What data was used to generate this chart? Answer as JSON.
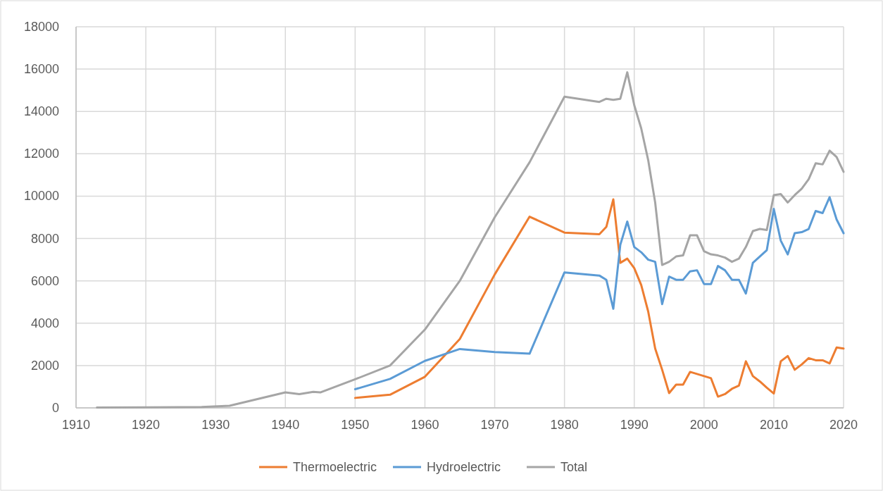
{
  "chart_data": {
    "type": "line",
    "xlim": [
      1910,
      2020
    ],
    "xticks": [
      1910,
      1920,
      1930,
      1940,
      1950,
      1960,
      1970,
      1980,
      1990,
      2000,
      2010,
      2020
    ],
    "ylim": [
      0,
      18000
    ],
    "yticks": [
      0,
      2000,
      4000,
      6000,
      8000,
      10000,
      12000,
      14000,
      16000,
      18000
    ],
    "grid": true,
    "legend": "bottom",
    "marker": "none",
    "line_style": "solid",
    "series": [
      {
        "name": "Thermoelectric",
        "color": "#ed7d31",
        "x": [
          1950,
          1955,
          1960,
          1965,
          1970,
          1975,
          1980,
          1985,
          1986,
          1987,
          1988,
          1989,
          1990,
          1991,
          1992,
          1993,
          1994,
          1995,
          1996,
          1997,
          1998,
          1999,
          2000,
          2001,
          2002,
          2003,
          2004,
          2005,
          2006,
          2007,
          2008,
          2009,
          2010,
          2011,
          2012,
          2013,
          2014,
          2015,
          2016,
          2017,
          2018,
          2019,
          2020
        ],
        "values": [
          470,
          620,
          1470,
          3250,
          6300,
          9030,
          8280,
          8200,
          8550,
          9850,
          6850,
          7050,
          6600,
          5800,
          4550,
          2800,
          1800,
          700,
          1100,
          1100,
          1700,
          1600,
          1500,
          1400,
          530,
          650,
          900,
          1050,
          2200,
          1500,
          1250,
          950,
          680,
          2200,
          2450,
          1800,
          2050,
          2350,
          2250,
          2250,
          2100,
          2850,
          2800
        ]
      },
      {
        "name": "Hydroelectric",
        "color": "#5b9bd5",
        "x": [
          1950,
          1955,
          1960,
          1965,
          1970,
          1975,
          1980,
          1985,
          1986,
          1987,
          1988,
          1989,
          1990,
          1991,
          1992,
          1993,
          1994,
          1995,
          1996,
          1997,
          1998,
          1999,
          2000,
          2001,
          2002,
          2003,
          2004,
          2005,
          2006,
          2007,
          2008,
          2009,
          2010,
          2011,
          2012,
          2013,
          2014,
          2015,
          2016,
          2017,
          2018,
          2019,
          2020
        ],
        "values": [
          880,
          1370,
          2220,
          2780,
          2640,
          2560,
          6400,
          6250,
          6050,
          4680,
          7700,
          8800,
          7600,
          7350,
          7000,
          6900,
          4900,
          6200,
          6050,
          6050,
          6450,
          6500,
          5850,
          5850,
          6700,
          6500,
          6050,
          6050,
          5400,
          6850,
          7150,
          7450,
          9400,
          7900,
          7250,
          8250,
          8300,
          8450,
          9300,
          9200,
          9950,
          8900,
          8250
        ]
      },
      {
        "name": "Total",
        "color": "#a5a5a5",
        "x": [
          1913,
          1920,
          1928,
          1932,
          1940,
          1942,
          1944,
          1945,
          1950,
          1955,
          1960,
          1965,
          1970,
          1975,
          1980,
          1985,
          1986,
          1987,
          1988,
          1989,
          1990,
          1991,
          1992,
          1993,
          1994,
          1995,
          1996,
          1997,
          1998,
          1999,
          2000,
          2001,
          2002,
          2003,
          2004,
          2005,
          2006,
          2007,
          2008,
          2009,
          2010,
          2011,
          2012,
          2013,
          2014,
          2015,
          2016,
          2017,
          2018,
          2019,
          2020
        ],
        "values": [
          20,
          25,
          40,
          100,
          730,
          650,
          760,
          730,
          1350,
          2000,
          3700,
          6000,
          9000,
          11600,
          14700,
          14450,
          14600,
          14550,
          14600,
          15850,
          14300,
          13200,
          11700,
          9700,
          6750,
          6900,
          7150,
          7200,
          8150,
          8150,
          7400,
          7250,
          7200,
          7100,
          6900,
          7050,
          7600,
          8350,
          8450,
          8400,
          10050,
          10100,
          9700,
          10050,
          10350,
          10800,
          11550,
          11500,
          12150,
          11850,
          11150
        ]
      }
    ]
  }
}
